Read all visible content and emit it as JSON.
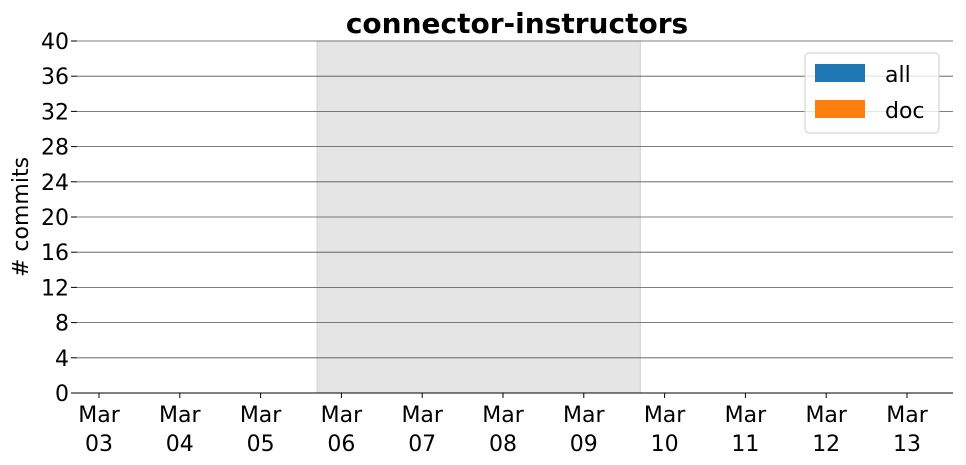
{
  "chart_data": {
    "type": "bar",
    "title": "connector-instructors",
    "xlabel": "",
    "ylabel": "# commits",
    "ylim": [
      0,
      40
    ],
    "yticks": [
      0,
      4,
      8,
      12,
      16,
      20,
      24,
      28,
      32,
      36,
      40
    ],
    "categories": [
      {
        "month": "Mar",
        "day": "03"
      },
      {
        "month": "Mar",
        "day": "04"
      },
      {
        "month": "Mar",
        "day": "05"
      },
      {
        "month": "Mar",
        "day": "06"
      },
      {
        "month": "Mar",
        "day": "07"
      },
      {
        "month": "Mar",
        "day": "08"
      },
      {
        "month": "Mar",
        "day": "09"
      },
      {
        "month": "Mar",
        "day": "10"
      },
      {
        "month": "Mar",
        "day": "11"
      },
      {
        "month": "Mar",
        "day": "12"
      },
      {
        "month": "Mar",
        "day": "13"
      }
    ],
    "series": [
      {
        "name": "all",
        "color": "#1f77b4",
        "values": [
          0,
          0,
          0,
          0,
          0,
          0,
          0,
          0,
          0,
          0,
          0
        ]
      },
      {
        "name": "doc",
        "color": "#ff7f0e",
        "values": [
          0,
          0,
          0,
          0,
          0,
          0,
          0,
          0,
          0,
          0,
          0
        ]
      }
    ],
    "highlight_span": {
      "from": "Mar 05/06 midpoint",
      "start_index": 2.7,
      "end_index": 6.7,
      "color": "#e5e5e5"
    },
    "grid": true,
    "legend_position": "top-right"
  }
}
